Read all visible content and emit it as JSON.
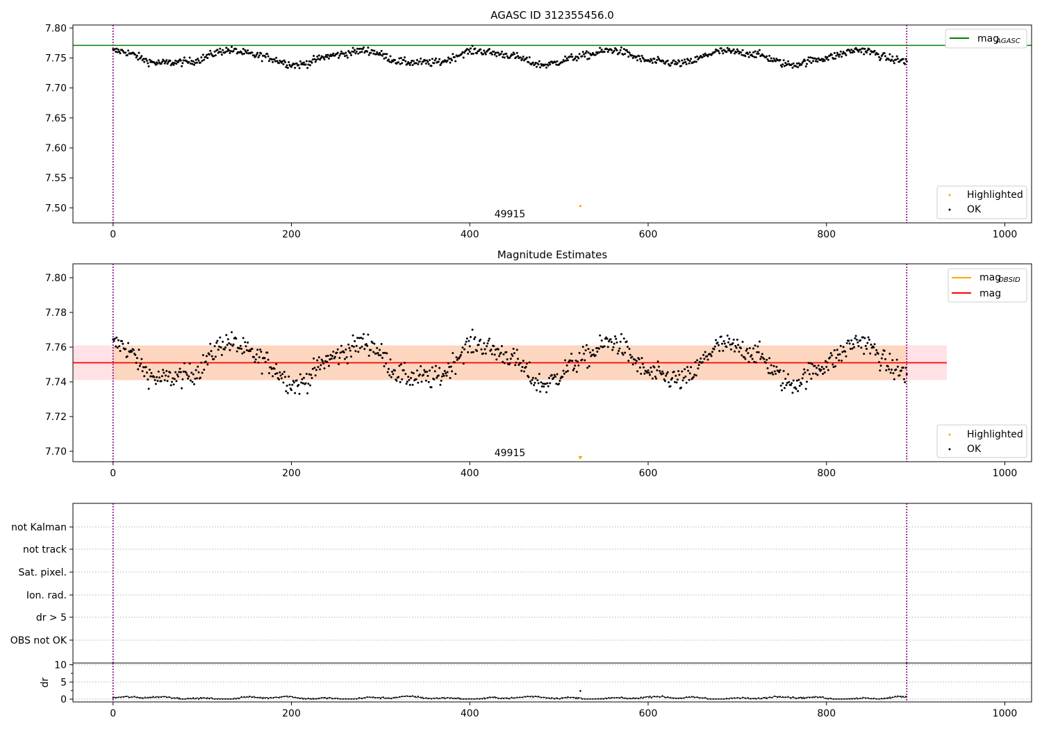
{
  "chart_data": [
    {
      "type": "scatter",
      "title": "AGASC ID 312355456.0",
      "xlim": [
        -45,
        1030
      ],
      "ylim": [
        7.475,
        7.805
      ],
      "xticks": [
        0,
        200,
        400,
        600,
        800,
        1000
      ],
      "yticks": [
        "7.50",
        "7.55",
        "7.60",
        "7.65",
        "7.70",
        "7.75",
        "7.80"
      ],
      "legend_top": {
        "position": "top-right",
        "entries": [
          {
            "label": "mag",
            "sub": "AGASC",
            "color": "#008000"
          }
        ]
      },
      "legend_bottom": {
        "position": "bottom-right",
        "entries": [
          {
            "label": "Highlighted",
            "color": "#ffa500"
          },
          {
            "label": "OK",
            "color": "#000000"
          }
        ]
      },
      "reference_line": {
        "y": 7.771,
        "color": "#008000"
      },
      "vlines": {
        "x": [
          0,
          890
        ],
        "color": "#800080"
      },
      "obsid_label": {
        "text": "49915",
        "x": 445
      },
      "highlighted_points": [
        {
          "x": 524,
          "y": 7.503
        }
      ]
    },
    {
      "type": "scatter",
      "title": "Magnitude Estimates",
      "xlim": [
        -45,
        1030
      ],
      "ylim": [
        7.694,
        7.808
      ],
      "xticks": [
        0,
        200,
        400,
        600,
        800,
        1000
      ],
      "yticks": [
        "7.70",
        "7.72",
        "7.74",
        "7.76",
        "7.78",
        "7.80"
      ],
      "legend_top": {
        "position": "top-right",
        "entries": [
          {
            "label": "mag",
            "sub": "OBSID",
            "color": "#ffa500"
          },
          {
            "label": "mag",
            "color": "#ff0000"
          }
        ]
      },
      "legend_bottom": {
        "position": "bottom-right",
        "entries": [
          {
            "label": "Highlighted",
            "color": "#ffa500"
          },
          {
            "label": "OK",
            "color": "#000000"
          }
        ]
      },
      "mag": 7.751,
      "band": {
        "low": 7.741,
        "high": 7.761,
        "x_end": 935,
        "inner_x_end": 890
      },
      "vlines": {
        "x": [
          0,
          890
        ],
        "color": "#800080"
      },
      "obsid_label": {
        "text": "49915",
        "x": 445
      },
      "highlighted_points": [
        {
          "x": 524,
          "y": 7.696
        }
      ]
    },
    {
      "type": "flags",
      "categories": [
        "not Kalman",
        "not track",
        "Sat. pixel.",
        "Ion. rad.",
        "dr > 5",
        "OBS not OK"
      ],
      "vlines": {
        "x": [
          0,
          890
        ],
        "color": "#800080"
      }
    },
    {
      "type": "line",
      "ylabel": "dr",
      "xlim": [
        -45,
        1030
      ],
      "ylim": [
        -0.8,
        10.5
      ],
      "xticks": [
        0,
        200,
        400,
        600,
        800,
        1000
      ],
      "yticks": [
        "0",
        "5",
        "10"
      ],
      "vlines": {
        "x": [
          0,
          890
        ],
        "color": "#800080"
      },
      "highlighted_points": [
        {
          "x": 524,
          "y": 2.4
        }
      ]
    }
  ]
}
